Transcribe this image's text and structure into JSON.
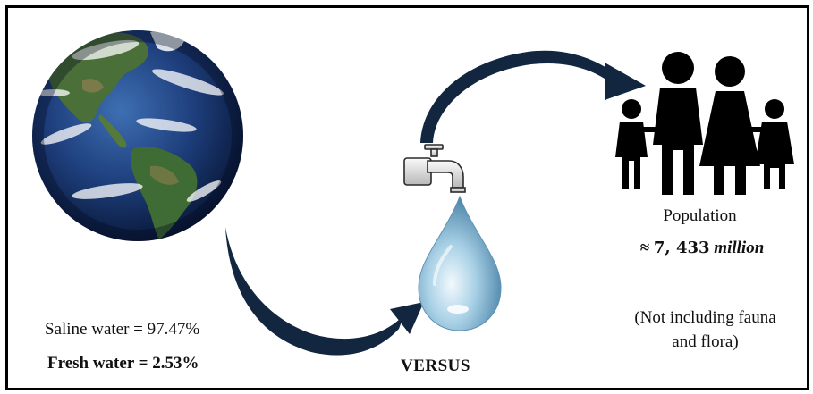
{
  "left": {
    "saline_label": "Saline water = 97.47%",
    "fresh_label": "Fresh water = 2.53%"
  },
  "center": {
    "versus_label": "VERSUS"
  },
  "right": {
    "population_label": "Population",
    "population_approx_symbol": "≈",
    "population_number": "7, 433",
    "population_unit": "million",
    "note_line1": "(Not including fauna",
    "note_line2": "and flora)"
  },
  "icons": {
    "earth": "earth-globe-icon",
    "faucet": "faucet-icon",
    "drop": "water-drop-icon",
    "family": "family-icon",
    "arrows": "curved-arrow-icon"
  },
  "colors": {
    "arrow": "#13263f",
    "ocean": "#1d3d7a",
    "land": "#3f6b34",
    "drop": "#9cc8de",
    "text": "#111111"
  }
}
